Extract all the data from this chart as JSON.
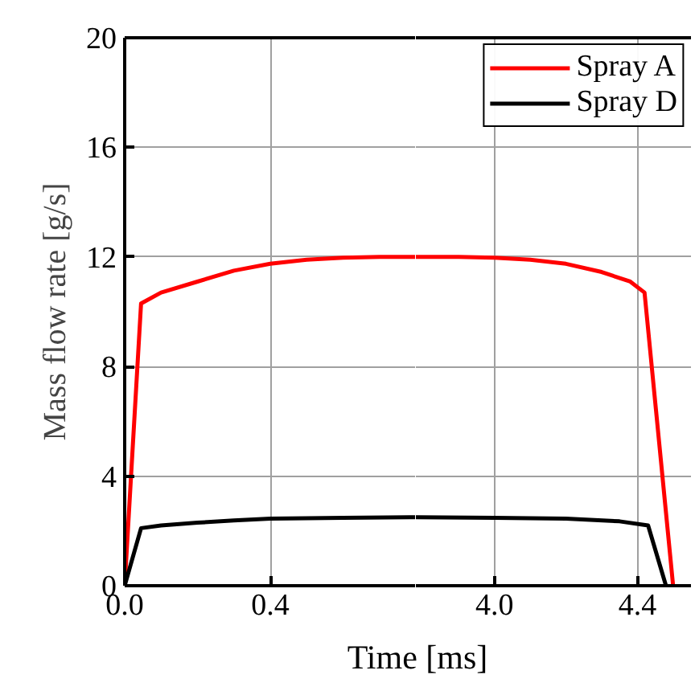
{
  "chart_data": [
    {
      "type": "line",
      "xlabel": "Time [ms]",
      "ylabel": "Mass flow rate [g/s]",
      "xlim": [
        0,
        0.8
      ],
      "xticks": [
        {
          "value": 0,
          "label": "0.0"
        },
        0.4
      ],
      "ylim": [
        0,
        20
      ],
      "yticks": [
        0,
        4,
        8,
        12,
        16,
        20
      ],
      "grid": true,
      "legend": "top right",
      "series": [
        {
          "name": "Spray A",
          "color": "#ff0000",
          "x": [
            0,
            0.045,
            0.1,
            0.2,
            0.3,
            0.4,
            0.5,
            0.6,
            0.7,
            0.8
          ],
          "values": [
            0,
            10.3,
            10.7,
            11.1,
            11.5,
            11.75,
            11.9,
            11.97,
            12,
            12
          ]
        },
        {
          "name": "Spray D",
          "color": "#000000",
          "x": [
            0,
            0.045,
            0.1,
            0.2,
            0.3,
            0.4,
            0.6,
            0.8
          ],
          "values": [
            0,
            2.1,
            2.2,
            2.3,
            2.38,
            2.45,
            2.48,
            2.5
          ]
        }
      ]
    },
    {
      "type": "line",
      "xlim": [
        3.78,
        4.55
      ],
      "xticks": [
        {
          "value": 4,
          "label": "4.0"
        },
        4.4
      ],
      "ylim": [
        0,
        20
      ],
      "yticks": [
        0,
        4,
        8,
        12,
        16,
        20
      ],
      "grid": true,
      "tick_labels": "x",
      "series": [
        {
          "color": "#ff0000",
          "x": [
            3.78,
            3.9,
            4.0,
            4.1,
            4.2,
            4.3,
            4.38,
            4.42,
            4.5
          ],
          "values": [
            12,
            12,
            11.97,
            11.9,
            11.75,
            11.45,
            11.1,
            10.7,
            0
          ]
        },
        {
          "color": "#000000",
          "x": [
            3.78,
            4.0,
            4.2,
            4.35,
            4.43,
            4.48
          ],
          "values": [
            2.5,
            2.48,
            2.45,
            2.35,
            2.2,
            0
          ]
        }
      ]
    }
  ]
}
